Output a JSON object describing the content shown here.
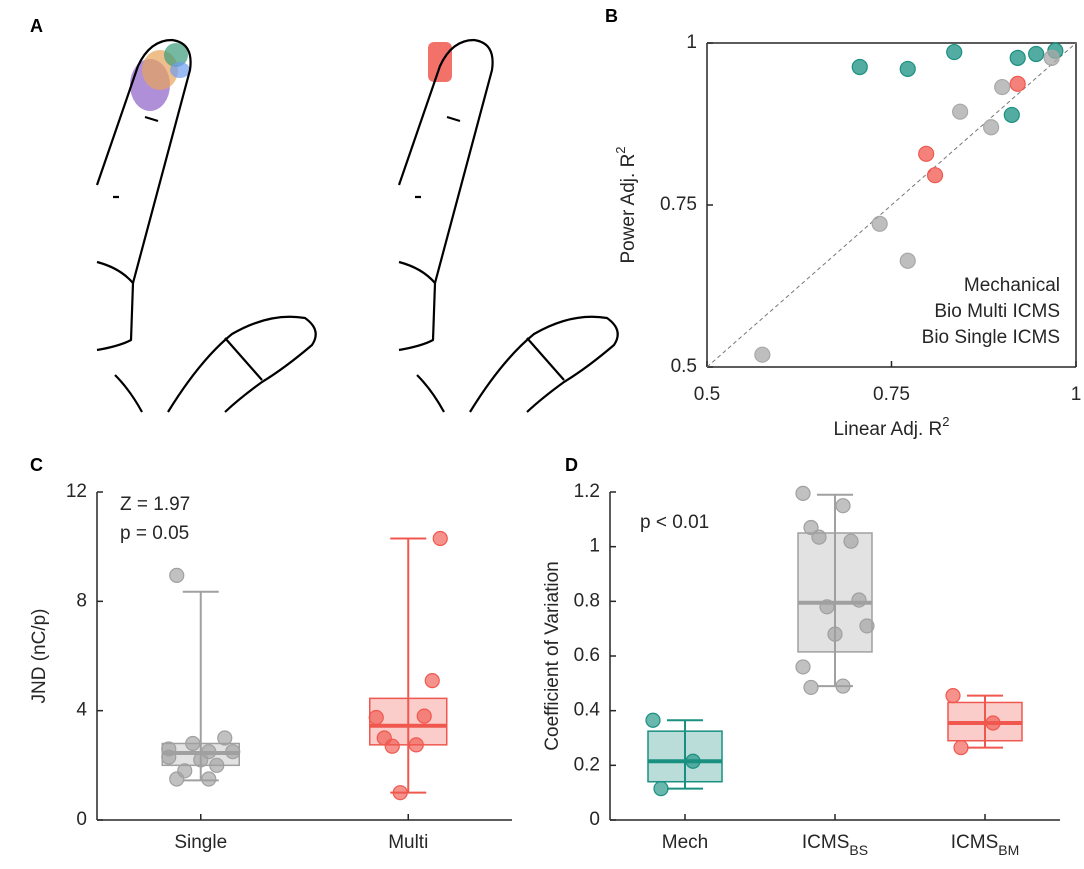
{
  "chart_data": [
    {
      "type": "illustration",
      "label": "A"
    },
    {
      "type": "scatter",
      "label": "B",
      "xlabel": "Linear Adj. R",
      "xlabel_sup": "2",
      "ylabel": "Power Adj. R",
      "ylabel_sup": "2",
      "xlim": [
        0.5,
        1
      ],
      "ylim": [
        0.5,
        1
      ],
      "xticks": [
        0.5,
        0.75,
        1
      ],
      "yticks": [
        0.5,
        0.75,
        1
      ],
      "legend": "lower right",
      "series": [
        {
          "name": "Mechanical",
          "color": "#1a9081",
          "x": [
            0.707,
            0.772,
            0.835,
            0.921,
            0.946,
            0.972,
            0.913
          ],
          "values": [
            0.963,
            0.96,
            0.986,
            0.977,
            0.983,
            0.988,
            0.889
          ]
        },
        {
          "name": "Bio Multi ICMS",
          "color": "#f0584f",
          "x": [
            0.921,
            0.797,
            0.809
          ],
          "values": [
            0.937,
            0.829,
            0.796
          ]
        },
        {
          "name": "Bio Single ICMS",
          "color": "#a8a8a8",
          "x": [
            0.967,
            0.9,
            0.843,
            0.885,
            0.734,
            0.772,
            0.575
          ],
          "values": [
            0.977,
            0.932,
            0.894,
            0.87,
            0.721,
            0.664,
            0.519
          ]
        }
      ]
    },
    {
      "type": "box",
      "label": "C",
      "ylabel": "JND (nC/p)",
      "annotations": [
        "Z = 1.97",
        "p = 0.05"
      ],
      "ylim": [
        0,
        12
      ],
      "yticks": [
        0,
        4,
        8,
        12
      ],
      "categories": [
        "Single",
        "Multi"
      ],
      "colors": [
        "#a0a0a0",
        "#f0584f"
      ],
      "boxes": [
        {
          "min": 1.45,
          "q1": 2.0,
          "median": 2.45,
          "q3": 2.8,
          "max": 8.35,
          "points": [
            2.6,
            1.5,
            1.5,
            2.0,
            1.8,
            3.0,
            2.8,
            2.5,
            2.2,
            2.3,
            2.5,
            8.95
          ]
        },
        {
          "min": 1.0,
          "q1": 2.75,
          "median": 3.45,
          "q3": 4.45,
          "max": 10.3,
          "points": [
            3.75,
            2.75,
            3.0,
            3.8,
            2.7,
            5.1,
            1.0,
            10.3
          ]
        }
      ]
    },
    {
      "type": "box",
      "label": "D",
      "ylabel": "Coefficient of Variation",
      "annotations": [
        "p < 0.01"
      ],
      "ylim": [
        0,
        1.2
      ],
      "yticks": [
        0,
        0.2,
        0.4,
        0.6,
        0.8,
        1,
        1.2
      ],
      "categories": [
        "Mech",
        "ICMS",
        "ICMS"
      ],
      "category_subscripts": [
        null,
        "BS",
        "BM"
      ],
      "colors": [
        "#1a9081",
        "#a0a0a0",
        "#f0584f"
      ],
      "boxes": [
        {
          "min": 0.115,
          "q1": 0.14,
          "median": 0.215,
          "q3": 0.325,
          "max": 0.365,
          "points": [
            0.365,
            0.215,
            0.115
          ]
        },
        {
          "min": 0.49,
          "q1": 0.615,
          "median": 0.795,
          "q3": 1.05,
          "max": 1.19,
          "points": [
            1.195,
            1.15,
            1.07,
            1.02,
            1.035,
            0.805,
            0.78,
            0.71,
            0.68,
            0.56,
            0.49,
            0.485
          ]
        },
        {
          "min": 0.265,
          "q1": 0.29,
          "median": 0.355,
          "q3": 0.43,
          "max": 0.455,
          "points": [
            0.455,
            0.355,
            0.265
          ]
        }
      ]
    }
  ]
}
